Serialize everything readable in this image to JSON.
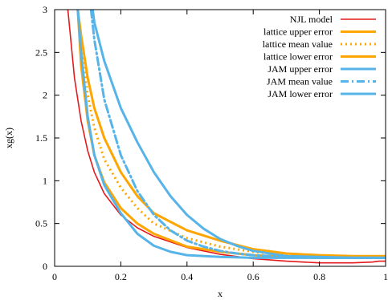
{
  "chart_data": {
    "type": "line",
    "title": "",
    "xlabel": "x",
    "ylabel": "xg(x)",
    "xlim": [
      0,
      1
    ],
    "ylim": [
      0,
      3
    ],
    "xticks": [
      0,
      0.2,
      0.4,
      0.6,
      0.8,
      1
    ],
    "xtick_labels": [
      "0",
      "0.2",
      "0.4",
      "0.6",
      "0.8",
      "1"
    ],
    "yticks": [
      0,
      0.5,
      1,
      1.5,
      2,
      2.5,
      3
    ],
    "ytick_labels": [
      "0",
      "0.5",
      "1",
      "1.5",
      "2",
      "2.5",
      "3"
    ],
    "grid": false,
    "legend_position": "top-right",
    "series": [
      {
        "name": "NJL model",
        "color": "#e41a1c",
        "style": "solid",
        "x": [
          0.04,
          0.05,
          0.06,
          0.08,
          0.1,
          0.12,
          0.15,
          0.2,
          0.25,
          0.3,
          0.4,
          0.5,
          0.6,
          0.7,
          0.8,
          0.9,
          0.96,
          0.98,
          1.0
        ],
        "y": [
          3.0,
          2.6,
          2.2,
          1.7,
          1.35,
          1.1,
          0.85,
          0.6,
          0.45,
          0.35,
          0.22,
          0.14,
          0.09,
          0.06,
          0.04,
          0.04,
          0.05,
          0.06,
          0.06
        ]
      },
      {
        "name": "lattice upper error",
        "color": "#ffa500",
        "style": "solid",
        "x": [
          0.07,
          0.08,
          0.1,
          0.12,
          0.15,
          0.2,
          0.25,
          0.3,
          0.4,
          0.5,
          0.6,
          0.7,
          0.8,
          0.9,
          1.0
        ],
        "y": [
          3.0,
          2.7,
          2.2,
          1.85,
          1.5,
          1.1,
          0.82,
          0.62,
          0.42,
          0.3,
          0.2,
          0.15,
          0.13,
          0.12,
          0.12
        ]
      },
      {
        "name": "lattice mean value",
        "color": "#ffa500",
        "style": "dotted",
        "x": [
          0.07,
          0.08,
          0.1,
          0.12,
          0.15,
          0.2,
          0.25,
          0.3,
          0.4,
          0.5,
          0.6,
          0.7,
          0.8,
          0.9,
          1.0
        ],
        "y": [
          3.0,
          2.55,
          2.0,
          1.62,
          1.25,
          0.92,
          0.68,
          0.5,
          0.33,
          0.23,
          0.17,
          0.13,
          0.12,
          0.11,
          0.11
        ]
      },
      {
        "name": "lattice lower error",
        "color": "#ffa500",
        "style": "solid",
        "x": [
          0.07,
          0.08,
          0.1,
          0.12,
          0.15,
          0.2,
          0.25,
          0.3,
          0.4,
          0.5,
          0.6,
          0.7,
          0.8,
          0.9,
          1.0
        ],
        "y": [
          3.0,
          2.35,
          1.7,
          1.3,
          0.98,
          0.68,
          0.5,
          0.38,
          0.23,
          0.17,
          0.13,
          0.11,
          0.1,
          0.1,
          0.1
        ]
      },
      {
        "name": "JAM upper error",
        "color": "#56b4e9",
        "style": "solid",
        "x": [
          0.115,
          0.12,
          0.15,
          0.2,
          0.25,
          0.3,
          0.35,
          0.4,
          0.45,
          0.5,
          0.55,
          0.6,
          0.7,
          0.8,
          0.9,
          1.0
        ],
        "y": [
          3.0,
          2.85,
          2.4,
          1.85,
          1.45,
          1.1,
          0.82,
          0.6,
          0.44,
          0.32,
          0.24,
          0.18,
          0.12,
          0.11,
          0.1,
          0.1
        ]
      },
      {
        "name": "JAM mean value",
        "color": "#56b4e9",
        "style": "dashdot",
        "x": [
          0.11,
          0.12,
          0.15,
          0.2,
          0.25,
          0.3,
          0.35,
          0.4,
          0.45,
          0.5,
          0.55,
          0.6,
          0.7,
          0.8,
          0.9,
          1.0
        ],
        "y": [
          3.0,
          2.65,
          1.95,
          1.3,
          0.88,
          0.6,
          0.42,
          0.3,
          0.23,
          0.18,
          0.15,
          0.13,
          0.11,
          0.1,
          0.1,
          0.1
        ]
      },
      {
        "name": "JAM lower error",
        "color": "#56b4e9",
        "style": "solid",
        "x": [
          0.07,
          0.08,
          0.1,
          0.12,
          0.15,
          0.2,
          0.25,
          0.3,
          0.35,
          0.4,
          0.5,
          0.6,
          0.7,
          0.8,
          0.9,
          1.0
        ],
        "y": [
          3.0,
          2.5,
          1.75,
          1.3,
          0.95,
          0.62,
          0.38,
          0.24,
          0.17,
          0.13,
          0.11,
          0.1,
          0.1,
          0.1,
          0.1,
          0.1
        ]
      }
    ]
  }
}
